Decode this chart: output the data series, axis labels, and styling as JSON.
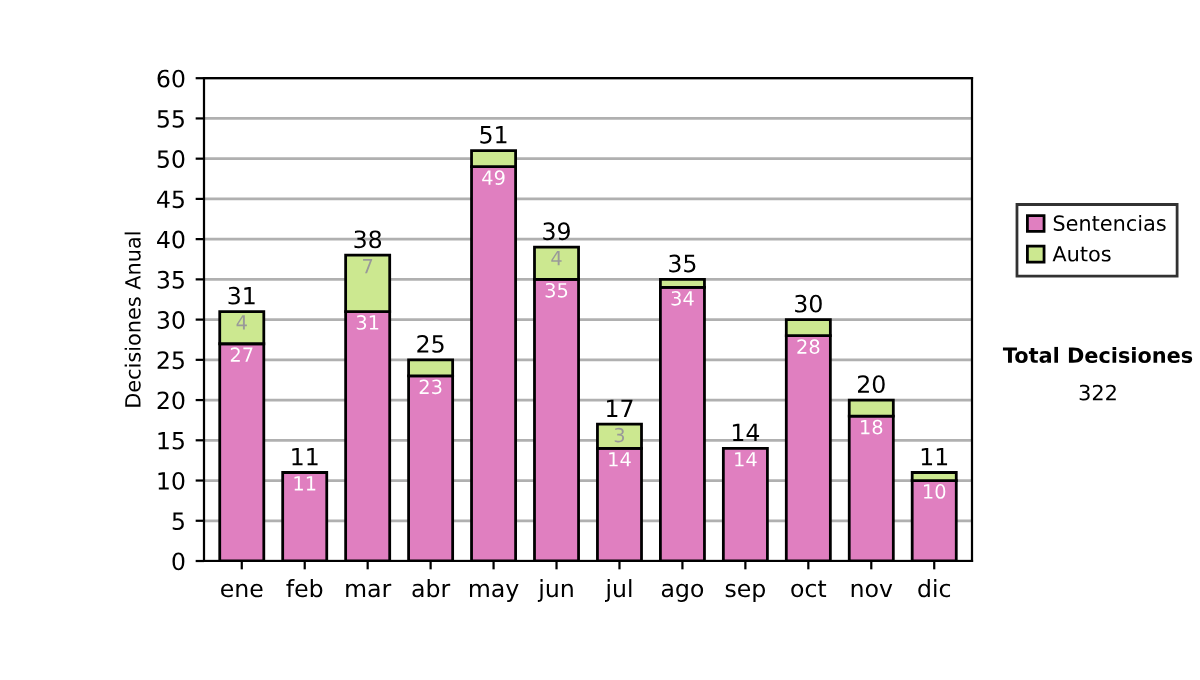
{
  "chart_data": {
    "type": "bar",
    "stacked": true,
    "ylabel": "Decisiones Anual",
    "categories": [
      "ene",
      "feb",
      "mar",
      "abr",
      "may",
      "jun",
      "jul",
      "ago",
      "sep",
      "oct",
      "nov",
      "dic"
    ],
    "series": [
      {
        "name": "Sentencias",
        "color": "#e07fc0",
        "values": [
          27,
          11,
          31,
          23,
          49,
          35,
          14,
          34,
          14,
          28,
          18,
          10
        ],
        "value_labels": [
          "27",
          "11",
          "31",
          "23",
          "49",
          "35",
          "14",
          "34",
          "14",
          "28",
          "18",
          "10"
        ]
      },
      {
        "name": "Autos",
        "color": "#cce890",
        "values": [
          4,
          null,
          7,
          2,
          2,
          4,
          3,
          1,
          null,
          2,
          2,
          1
        ],
        "value_labels": [
          "4",
          null,
          "7",
          null,
          null,
          "4",
          "3",
          null,
          null,
          null,
          null,
          null
        ]
      }
    ],
    "totals": [
      "31",
      "11",
      "38",
      "25",
      "51",
      "39",
      "17",
      "35",
      "14",
      "30",
      "20",
      "11"
    ],
    "ylim": [
      0,
      60
    ],
    "yticks": [
      0,
      5,
      10,
      15,
      20,
      25,
      30,
      35,
      40,
      45,
      50,
      55,
      60
    ],
    "grid": "y",
    "legend": "right",
    "annotations": [
      "Total Decisiones",
      "322"
    ]
  }
}
